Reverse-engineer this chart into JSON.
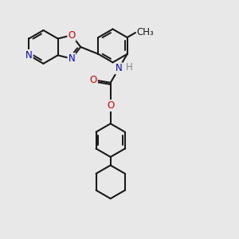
{
  "background_color": "#e8e8e8",
  "bond_color": "#1a1a1a",
  "bond_width": 1.5,
  "atom_colors": {
    "N": "#0000ee",
    "O": "#dd0000",
    "H": "#888888",
    "C": "#1a1a1a"
  },
  "font_size": 8.5,
  "fig_size": [
    3.0,
    3.0
  ],
  "dpi": 100
}
